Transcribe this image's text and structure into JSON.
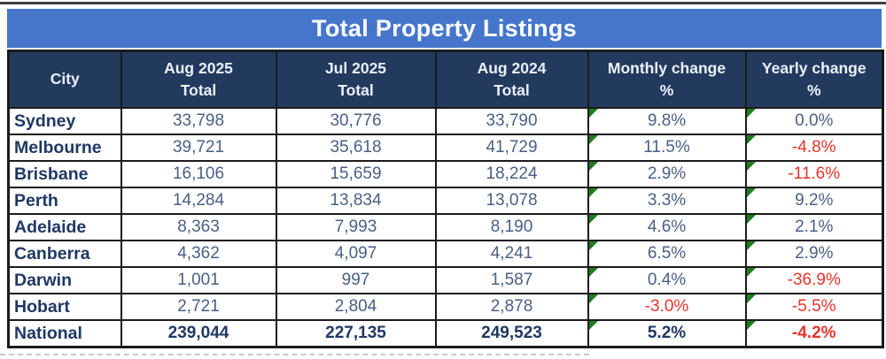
{
  "title": "Total Property Listings",
  "columns": [
    {
      "id": "city",
      "label_line1": "City",
      "label_line2": ""
    },
    {
      "id": "aug_2025_total",
      "label_line1": "Aug 2025",
      "label_line2": "Total"
    },
    {
      "id": "jul_2025_total",
      "label_line1": "Jul 2025",
      "label_line2": "Total"
    },
    {
      "id": "aug_2024_total",
      "label_line1": "Aug 2024",
      "label_line2": "Total"
    },
    {
      "id": "monthly_change",
      "label_line1": "Monthly change",
      "label_line2": "%"
    },
    {
      "id": "yearly_change",
      "label_line1": "Yearly change",
      "label_line2": "%"
    }
  ],
  "rows": [
    {
      "city": "Sydney",
      "aug_2025_total": "33,798",
      "jul_2025_total": "30,776",
      "aug_2024_total": "33,790",
      "monthly_change": "9.8%",
      "yearly_change": "0.0%",
      "monthly_negative": false,
      "yearly_negative": false,
      "is_total": false
    },
    {
      "city": "Melbourne",
      "aug_2025_total": "39,721",
      "jul_2025_total": "35,618",
      "aug_2024_total": "41,729",
      "monthly_change": "11.5%",
      "yearly_change": "-4.8%",
      "monthly_negative": false,
      "yearly_negative": true,
      "is_total": false
    },
    {
      "city": "Brisbane",
      "aug_2025_total": "16,106",
      "jul_2025_total": "15,659",
      "aug_2024_total": "18,224",
      "monthly_change": "2.9%",
      "yearly_change": "-11.6%",
      "monthly_negative": false,
      "yearly_negative": true,
      "is_total": false
    },
    {
      "city": "Perth",
      "aug_2025_total": "14,284",
      "jul_2025_total": "13,834",
      "aug_2024_total": "13,078",
      "monthly_change": "3.3%",
      "yearly_change": "9.2%",
      "monthly_negative": false,
      "yearly_negative": false,
      "is_total": false
    },
    {
      "city": "Adelaide",
      "aug_2025_total": "8,363",
      "jul_2025_total": "7,993",
      "aug_2024_total": "8,190",
      "monthly_change": "4.6%",
      "yearly_change": "2.1%",
      "monthly_negative": false,
      "yearly_negative": false,
      "is_total": false
    },
    {
      "city": "Canberra",
      "aug_2025_total": "4,362",
      "jul_2025_total": "4,097",
      "aug_2024_total": "4,241",
      "monthly_change": "6.5%",
      "yearly_change": "2.9%",
      "monthly_negative": false,
      "yearly_negative": false,
      "is_total": false
    },
    {
      "city": "Darwin",
      "aug_2025_total": "1,001",
      "jul_2025_total": "997",
      "aug_2024_total": "1,587",
      "monthly_change": "0.4%",
      "yearly_change": "-36.9%",
      "monthly_negative": false,
      "yearly_negative": true,
      "is_total": false
    },
    {
      "city": "Hobart",
      "aug_2025_total": "2,721",
      "jul_2025_total": "2,804",
      "aug_2024_total": "2,878",
      "monthly_change": "-3.0%",
      "yearly_change": "-5.5%",
      "monthly_negative": true,
      "yearly_negative": true,
      "is_total": false
    },
    {
      "city": "National",
      "aug_2025_total": "239,044",
      "jul_2025_total": "227,135",
      "aug_2024_total": "249,523",
      "monthly_change": "5.2%",
      "yearly_change": "-4.2%",
      "monthly_negative": false,
      "yearly_negative": true,
      "is_total": true
    }
  ],
  "icons": {
    "error_indicator": "green-corner-triangle"
  },
  "colors": {
    "title_background": "#4576CB",
    "title_text": "#FFFFFF",
    "header_background": "#233A5F",
    "header_text": "#EAF1FB",
    "city_text": "#1F3864",
    "value_text": "#4A5F85",
    "negative_text": "#E8332A",
    "error_triangle": "#1F7D1F",
    "border": "#1B1B1B"
  }
}
